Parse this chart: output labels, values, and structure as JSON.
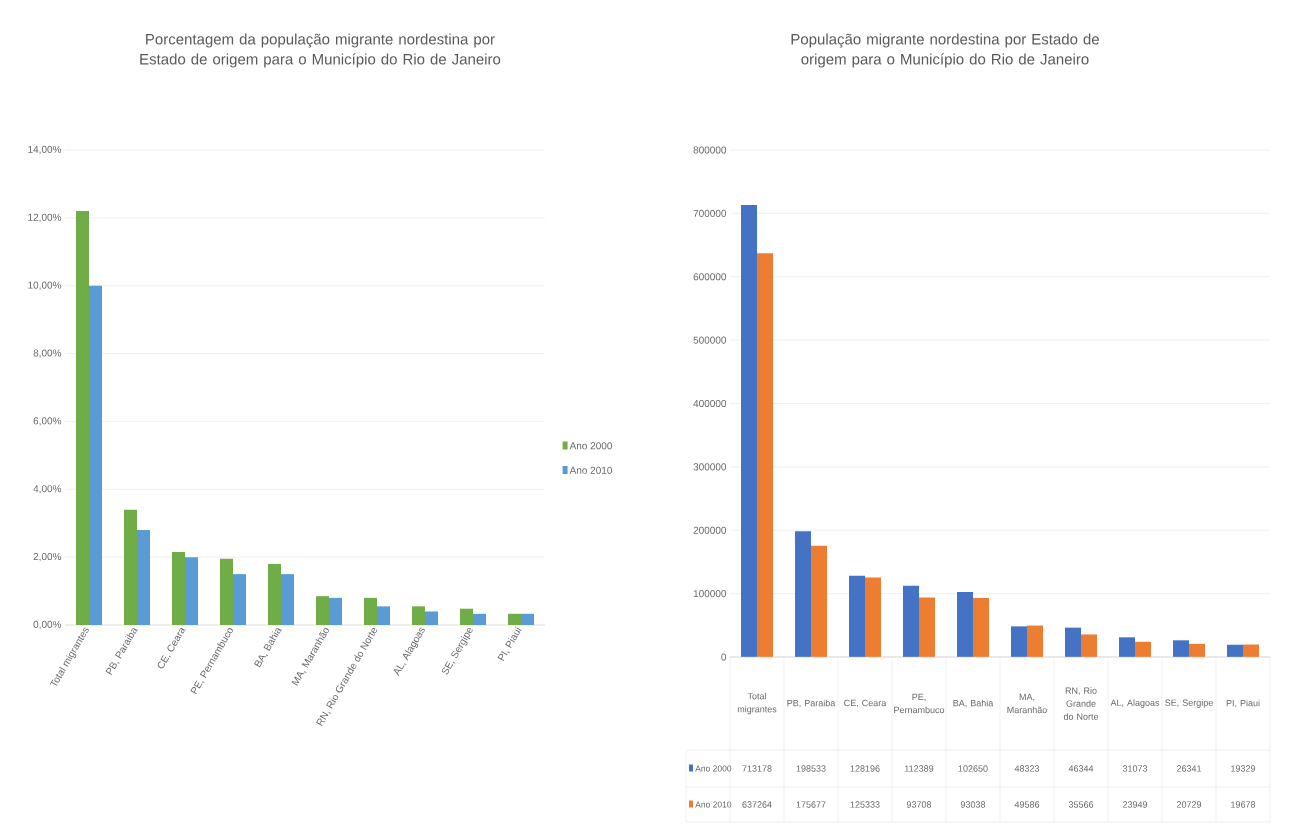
{
  "chart_data": [
    {
      "type": "bar",
      "title": "Porcentagem da população migrante nordestina por Estado de origem para o Município do Rio de Janeiro",
      "categories": [
        "Total migrantes",
        "PB, Paraiba",
        "CE, Ceara",
        "PE, Pernambuco",
        "BA, Bahia",
        "MA, Maranhão",
        "RN, Rio Grande do Norte",
        "AL, Alagoas",
        "SE, Sergipe",
        "PI, Piaui"
      ],
      "series": [
        {
          "name": "Ano 2000",
          "color": "#70ad47",
          "values": [
            12.2,
            3.4,
            2.15,
            1.95,
            1.8,
            0.85,
            0.8,
            0.55,
            0.48,
            0.33
          ]
        },
        {
          "name": "Ano 2010",
          "color": "#5b9bd5",
          "values": [
            10.0,
            2.8,
            2.0,
            1.5,
            1.5,
            0.8,
            0.55,
            0.4,
            0.33,
            0.33
          ]
        }
      ],
      "ylim": [
        0,
        14
      ],
      "yticks": [
        {
          "value": 0,
          "label": "0,00%"
        },
        {
          "value": 2,
          "label": "2,00%"
        },
        {
          "value": 4,
          "label": "4,00%"
        },
        {
          "value": 6,
          "label": "6,00%"
        },
        {
          "value": 8,
          "label": "8,00%"
        },
        {
          "value": 10,
          "label": "10,00%"
        },
        {
          "value": 12,
          "label": "12,00%"
        },
        {
          "value": 14,
          "label": "14,00%"
        }
      ],
      "grid": "y",
      "legend": "right"
    },
    {
      "type": "bar",
      "title": "População migrante nordestina por Estado de origem para o Município do Rio de Janeiro",
      "categories": [
        "Total migrantes",
        "PB, Paraiba",
        "CE, Ceara",
        "PE, Pernambuco",
        "BA, Bahia",
        "MA, Maranhão",
        "RN, Rio Grande do Norte",
        "AL, Alagoas",
        "SE, Sergipe",
        "PI, Piaui"
      ],
      "series": [
        {
          "name": "Ano 2000",
          "color": "#4472c4",
          "values": [
            713178,
            198533,
            128196,
            112389,
            102650,
            48323,
            46344,
            31073,
            26341,
            19329
          ]
        },
        {
          "name": "Ano 2010",
          "color": "#ed7d31",
          "values": [
            637264,
            175677,
            125333,
            93708,
            93038,
            49586,
            35566,
            23949,
            20729,
            19678
          ]
        }
      ],
      "ylim": [
        0,
        800000
      ],
      "yticks": [
        0,
        100000,
        200000,
        300000,
        400000,
        500000,
        600000,
        700000,
        800000
      ],
      "grid": "y",
      "legend": "bottom",
      "data_labels": true
    }
  ]
}
